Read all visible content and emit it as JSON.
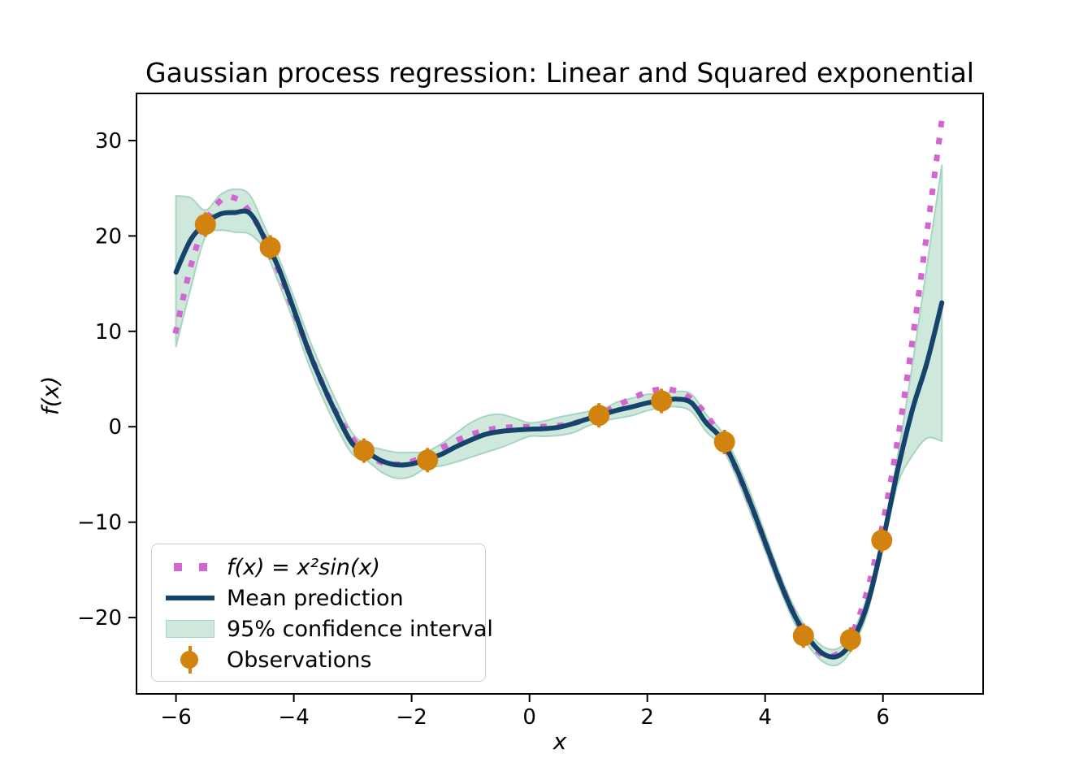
{
  "title": "Gaussian process regression: Linear and Squared exponential",
  "axes": {
    "xlabel": "x",
    "ylabel": "f(x)",
    "xlim": [
      -6.67,
      7.7
    ],
    "ylim": [
      -28.0,
      34.94
    ],
    "x_ticks": [
      -6,
      -4,
      -2,
      0,
      2,
      4,
      6
    ],
    "x_tick_labels": [
      "−6",
      "−4",
      "−2",
      "0",
      "2",
      "4",
      "6"
    ],
    "y_ticks": [
      30,
      20,
      10,
      0,
      -10,
      -20
    ],
    "y_tick_labels": [
      "30",
      "20",
      "10",
      "0",
      "−10",
      "−20"
    ]
  },
  "colors": {
    "true_function": "#d365d0",
    "mean_prediction": "#16436b",
    "confidence_fill": "#cee8db",
    "confidence_edge": "#a8d5c0",
    "observations": "#d2820f",
    "axis": "#000000",
    "legend_border": "#cccccc"
  },
  "legend": {
    "items": [
      {
        "label": "f(x) = x²sin(x)",
        "kind": "dotted-line"
      },
      {
        "label": "Mean prediction",
        "kind": "solid-line"
      },
      {
        "label": "95% confidence interval",
        "kind": "patch"
      },
      {
        "label": "Observations",
        "kind": "errorbar-marker"
      }
    ]
  },
  "chart_data": {
    "type": "line",
    "title": "Gaussian process regression: Linear and Squared exponential",
    "xlabel": "x",
    "ylabel": "f(x)",
    "xlim": [
      -6.67,
      7.7
    ],
    "ylim": [
      -28.0,
      34.94
    ],
    "grid": false,
    "legend_position": "lower left",
    "x": [
      -6,
      -5.75,
      -5.5,
      -5.25,
      -5,
      -4.75,
      -4.5,
      -4.25,
      -4,
      -3.75,
      -3.5,
      -3.25,
      -3,
      -2.75,
      -2.5,
      -2.25,
      -2,
      -1.75,
      -1.5,
      -1.25,
      -1,
      -0.75,
      -0.5,
      -0.25,
      0,
      0.25,
      0.5,
      0.75,
      1,
      1.25,
      1.5,
      1.75,
      2,
      2.25,
      2.5,
      2.75,
      3,
      3.25,
      3.5,
      3.75,
      4,
      4.25,
      4.5,
      4.75,
      5,
      5.25,
      5.5,
      5.75,
      6,
      6.25,
      6.5,
      6.75,
      7
    ],
    "series": [
      {
        "name": "f(x) = x²sin(x)",
        "style": "dotted",
        "color": "#d365d0",
        "y": [
          10.06,
          16.81,
          21.34,
          23.68,
          23.97,
          22.55,
          19.79,
          16.19,
          12.11,
          8.04,
          4.3,
          1.14,
          -1.27,
          -2.89,
          -3.74,
          -3.94,
          -3.64,
          -3.01,
          -2.24,
          -1.48,
          -0.84,
          -0.38,
          -0.12,
          -0.02,
          0,
          0.02,
          0.12,
          0.38,
          0.84,
          1.48,
          2.24,
          3.01,
          3.64,
          3.94,
          3.74,
          2.89,
          1.27,
          -1.14,
          -4.3,
          -8.04,
          -12.11,
          -16.19,
          -19.79,
          -22.55,
          -23.97,
          -23.68,
          -21.34,
          -16.81,
          -10.06,
          -1.3,
          9.09,
          20.5,
          32.19
        ]
      },
      {
        "name": "Mean prediction",
        "style": "solid",
        "color": "#16436b",
        "y": [
          16.2,
          19.6,
          21.3,
          22.3,
          22.45,
          22.4,
          19.8,
          16.5,
          12.3,
          8.0,
          4.3,
          1.0,
          -1.8,
          -2.7,
          -3.6,
          -4.0,
          -3.9,
          -3.45,
          -2.9,
          -2.1,
          -1.4,
          -0.8,
          -0.5,
          -0.35,
          -0.25,
          -0.2,
          -0.05,
          0.35,
          0.85,
          1.3,
          1.75,
          2.1,
          2.5,
          2.7,
          2.9,
          2.5,
          0.4,
          -1.2,
          -4.2,
          -8.0,
          -12.1,
          -16.2,
          -19.8,
          -22.3,
          -23.85,
          -24.0,
          -22.2,
          -18.3,
          -11.9,
          -4.5,
          1.8,
          6.8,
          13.0
        ]
      },
      {
        "name": "95% confidence interval",
        "style": "band",
        "color": "#cee8db",
        "edge_color": "#a8d5c0",
        "lower": [
          8.4,
          14.5,
          19.9,
          20.6,
          20.4,
          20.2,
          18.6,
          15.0,
          11.0,
          6.6,
          2.9,
          -0.3,
          -2.9,
          -3.6,
          -4.8,
          -5.4,
          -5.2,
          -4.3,
          -4.1,
          -3.7,
          -3.2,
          -2.7,
          -2.2,
          -1.6,
          -1.0,
          -1.0,
          -0.9,
          -0.6,
          0.1,
          0.6,
          0.9,
          1.2,
          1.7,
          2.0,
          2.1,
          1.6,
          -0.5,
          -2.0,
          -5.1,
          -9.0,
          -13.0,
          -17.0,
          -20.6,
          -23.1,
          -24.7,
          -24.9,
          -23.0,
          -19.2,
          -12.7,
          -6.0,
          -3.0,
          -1.2,
          -1.5
        ],
        "upper": [
          24.2,
          24.0,
          22.7,
          24.3,
          24.9,
          24.3,
          21.0,
          17.6,
          13.6,
          9.4,
          5.7,
          2.3,
          -0.7,
          -1.9,
          -2.4,
          -2.7,
          -2.7,
          -2.6,
          -1.8,
          -0.7,
          0.4,
          1.1,
          1.3,
          0.9,
          0.4,
          0.6,
          1.0,
          1.3,
          1.6,
          1.9,
          2.6,
          3.0,
          3.4,
          3.4,
          3.7,
          3.4,
          1.3,
          -0.4,
          -3.3,
          -7.0,
          -11.2,
          -15.4,
          -19.0,
          -21.6,
          -23.1,
          -23.2,
          -21.4,
          -17.4,
          -11.1,
          -3.0,
          6.5,
          17.0,
          27.4
        ]
      },
      {
        "name": "Observations",
        "style": "scatter",
        "color": "#d2820f",
        "points_x": [
          -5.5,
          -4.4,
          -2.81,
          -1.73,
          1.18,
          2.24,
          3.31,
          4.65,
          5.45,
          5.98
        ],
        "points_y": [
          21.2,
          18.8,
          -2.5,
          -3.5,
          1.2,
          2.7,
          -1.6,
          -21.9,
          -22.3,
          -11.9
        ]
      }
    ]
  }
}
